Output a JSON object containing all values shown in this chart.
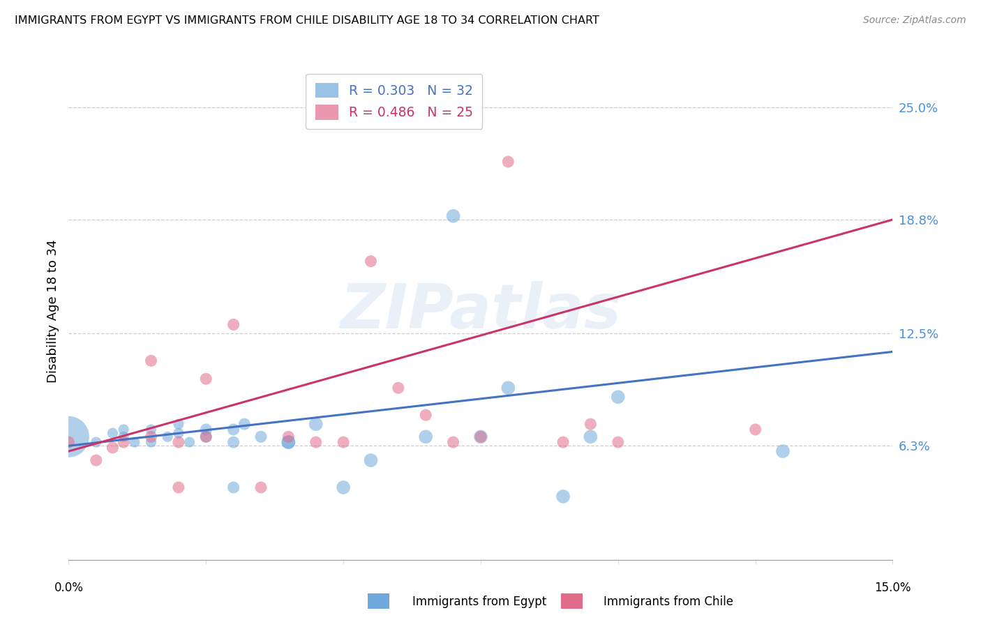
{
  "title": "IMMIGRANTS FROM EGYPT VS IMMIGRANTS FROM CHILE DISABILITY AGE 18 TO 34 CORRELATION CHART",
  "source": "Source: ZipAtlas.com",
  "ylabel": "Disability Age 18 to 34",
  "ytick_labels": [
    "6.3%",
    "12.5%",
    "18.8%",
    "25.0%"
  ],
  "ytick_values": [
    0.063,
    0.125,
    0.188,
    0.25
  ],
  "xlim": [
    0.0,
    0.15
  ],
  "ylim": [
    0.0,
    0.275
  ],
  "legend_egypt": "R = 0.303   N = 32",
  "legend_chile": "R = 0.486   N = 25",
  "legend_label_egypt": "Immigrants from Egypt",
  "legend_label_chile": "Immigrants from Chile",
  "egypt_color": "#6fa8dc",
  "chile_color": "#e06c8a",
  "egypt_line_color": "#4472c4",
  "chile_line_color": "#cc3366",
  "egypt_scatter_x": [
    0.0,
    0.005,
    0.008,
    0.01,
    0.01,
    0.012,
    0.015,
    0.015,
    0.018,
    0.02,
    0.02,
    0.022,
    0.025,
    0.025,
    0.03,
    0.03,
    0.03,
    0.032,
    0.035,
    0.04,
    0.04,
    0.045,
    0.05,
    0.055,
    0.065,
    0.07,
    0.075,
    0.08,
    0.09,
    0.095,
    0.1,
    0.13
  ],
  "egypt_scatter_y": [
    0.068,
    0.065,
    0.07,
    0.068,
    0.072,
    0.065,
    0.065,
    0.072,
    0.068,
    0.07,
    0.075,
    0.065,
    0.068,
    0.072,
    0.065,
    0.072,
    0.04,
    0.075,
    0.068,
    0.065,
    0.065,
    0.075,
    0.04,
    0.055,
    0.068,
    0.19,
    0.068,
    0.095,
    0.035,
    0.068,
    0.09,
    0.06
  ],
  "egypt_scatter_size": [
    1800,
    120,
    120,
    120,
    120,
    120,
    120,
    120,
    120,
    120,
    120,
    120,
    150,
    150,
    150,
    150,
    150,
    150,
    150,
    200,
    200,
    200,
    200,
    200,
    200,
    200,
    200,
    200,
    200,
    200,
    200,
    200
  ],
  "chile_scatter_x": [
    0.0,
    0.005,
    0.008,
    0.01,
    0.015,
    0.015,
    0.02,
    0.02,
    0.025,
    0.025,
    0.03,
    0.035,
    0.04,
    0.045,
    0.05,
    0.055,
    0.06,
    0.065,
    0.07,
    0.075,
    0.08,
    0.09,
    0.095,
    0.1,
    0.125
  ],
  "chile_scatter_y": [
    0.065,
    0.055,
    0.062,
    0.065,
    0.068,
    0.11,
    0.065,
    0.04,
    0.068,
    0.1,
    0.13,
    0.04,
    0.068,
    0.065,
    0.065,
    0.165,
    0.095,
    0.08,
    0.065,
    0.068,
    0.22,
    0.065,
    0.075,
    0.065,
    0.072
  ],
  "chile_scatter_size": [
    150,
    150,
    150,
    150,
    150,
    150,
    150,
    150,
    150,
    150,
    150,
    150,
    150,
    150,
    150,
    150,
    150,
    150,
    150,
    150,
    150,
    150,
    150,
    150,
    150
  ],
  "egypt_trendline_x": [
    0.0,
    0.15
  ],
  "egypt_trendline_y": [
    0.063,
    0.115
  ],
  "chile_trendline_x": [
    0.0,
    0.15
  ],
  "chile_trendline_y": [
    0.06,
    0.188
  ],
  "watermark": "ZIPatlas",
  "background_color": "#ffffff",
  "grid_color": "#cccccc"
}
